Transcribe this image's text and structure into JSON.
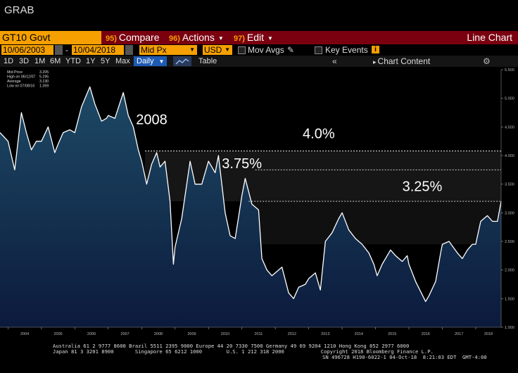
{
  "window": {
    "title": "GRAB"
  },
  "toolbar": {
    "ticker": "GT10 Govt",
    "compare": {
      "num": "95)",
      "label": "Compare"
    },
    "actions": {
      "num": "96)",
      "label": "Actions"
    },
    "edit": {
      "num": "97)",
      "label": "Edit"
    },
    "chart_type": "Line Chart"
  },
  "settings": {
    "start_date": "10/06/2003",
    "end_date": "10/04/2018",
    "field": "Mid Px",
    "currency": "USD",
    "mov_avgs": "Mov Avgs",
    "key_events": "Key Events",
    "info_badge": "i"
  },
  "periods": [
    "1D",
    "3D",
    "1M",
    "6M",
    "YTD",
    "1Y",
    "5Y",
    "Max"
  ],
  "frequency": "Daily",
  "table_label": "Table",
  "chart_content_label": "Chart Content",
  "legend": {
    "mid": "Mid Price",
    "mid_val": "3.205",
    "high": "High on 06/12/07",
    "high_val": "5.295",
    "avg": "Average",
    "avg_val": "3.130",
    "low": "Low on 07/08/16",
    "low_val": "1.359"
  },
  "colors": {
    "orange": "#f5a000",
    "red_bar": "#7a0010",
    "fill_top": "#1d4a66",
    "fill_bottom": "#0c1a3c",
    "line": "#ffffff"
  },
  "footer": {
    "line1": "Australia 61 2 9777 8600 Brazil 5511 2395 9000 Europe 44 20 7330 7500 Germany 49 69 9204 1210 Hong Kong 852 2977 6000",
    "line2": "Japan 81 3 3201 8900       Singapore 65 6212 1000        U.S. 1 212 318 2000            Copyright 2018 Bloomberg Finance L.P.",
    "line3": "SN 496728 H190-6022-1 04-Oct-18  8:21:03 EDT  GMT-4:00"
  },
  "chart_data": {
    "type": "line",
    "series": [
      {
        "name": "Mid Price",
        "x": [
          2003.76,
          2004.0,
          2004.2,
          2004.4,
          2004.55,
          2004.7,
          2004.85,
          2005.0,
          2005.2,
          2005.4,
          2005.5,
          2005.65,
          2005.85,
          2006.0,
          2006.2,
          2006.45,
          2006.6,
          2006.8,
          2006.95,
          2007.0,
          2007.2,
          2007.45,
          2007.6,
          2007.75,
          2007.9,
          2008.0,
          2008.15,
          2008.3,
          2008.45,
          2008.55,
          2008.7,
          2008.85,
          2008.95,
          2009.0,
          2009.2,
          2009.45,
          2009.6,
          2009.8,
          2009.95,
          2010.0,
          2010.2,
          2010.3,
          2010.5,
          2010.65,
          2010.8,
          2011.0,
          2011.1,
          2011.3,
          2011.5,
          2011.6,
          2011.75,
          2011.9,
          2012.0,
          2012.2,
          2012.4,
          2012.55,
          2012.7,
          2012.9,
          2013.0,
          2013.2,
          2013.35,
          2013.5,
          2013.7,
          2013.9,
          2014.0,
          2014.2,
          2014.4,
          2014.6,
          2014.8,
          2014.95,
          2015.05,
          2015.2,
          2015.45,
          2015.6,
          2015.8,
          2015.95,
          2016.0,
          2016.2,
          2016.5,
          2016.6,
          2016.8,
          2016.95,
          2017.0,
          2017.2,
          2017.45,
          2017.6,
          2017.75,
          2017.9,
          2018.0,
          2018.15,
          2018.35,
          2018.5,
          2018.65,
          2018.76
        ],
        "y": [
          4.4,
          4.25,
          3.75,
          4.75,
          4.4,
          4.1,
          4.25,
          4.25,
          4.5,
          4.05,
          4.2,
          4.4,
          4.45,
          4.4,
          4.85,
          5.2,
          4.9,
          4.6,
          4.65,
          4.7,
          4.65,
          5.1,
          4.7,
          4.5,
          4.1,
          3.9,
          3.5,
          3.85,
          4.05,
          3.8,
          3.9,
          3.2,
          2.1,
          2.4,
          2.9,
          3.9,
          3.5,
          3.5,
          3.8,
          3.9,
          3.7,
          4.0,
          3.0,
          2.6,
          2.55,
          3.3,
          3.6,
          3.15,
          3.05,
          2.2,
          2.0,
          1.9,
          1.95,
          2.05,
          1.6,
          1.5,
          1.7,
          1.75,
          1.85,
          1.95,
          1.65,
          2.5,
          2.65,
          2.9,
          3.0,
          2.7,
          2.55,
          2.45,
          2.3,
          2.1,
          1.9,
          2.1,
          2.35,
          2.25,
          2.15,
          2.25,
          2.1,
          1.8,
          1.45,
          1.55,
          1.8,
          2.3,
          2.45,
          2.5,
          2.3,
          2.2,
          2.35,
          2.45,
          2.45,
          2.85,
          2.95,
          2.85,
          2.85,
          3.2
        ]
      }
    ],
    "x_ticks": [
      "2004",
      "2005",
      "2006",
      "2007",
      "2008",
      "2009",
      "2010",
      "2011",
      "2012",
      "2013",
      "2014",
      "2015",
      "2016",
      "2017",
      "2018"
    ],
    "y_ticks": [
      "1.000",
      "1.500",
      "2.000",
      "2.500",
      "3.000",
      "3.500",
      "4.000",
      "4.500",
      "5.000",
      "5.500"
    ],
    "ylim": [
      1.0,
      5.5
    ],
    "xlim": [
      2003.76,
      2018.76
    ],
    "annotations": [
      {
        "text": "2008",
        "x": 2008.3,
        "y": 4.55
      },
      {
        "text": "4.0%",
        "x": 2013.3,
        "y": 4.3
      },
      {
        "text": "3.75%",
        "x": 2011.0,
        "y": 3.78
      },
      {
        "text": "3.25%",
        "x": 2016.4,
        "y": 3.38
      }
    ],
    "reference_lines": [
      {
        "value": 4.08,
        "from": 2008.1
      },
      {
        "value": 3.75,
        "from": 2011.4
      },
      {
        "value": 3.2,
        "from": 2011.2
      }
    ],
    "bands": [
      {
        "from": 2008.1,
        "to": 2018.76,
        "lower": 3.2,
        "upper": 4.08
      },
      {
        "from": 2011.2,
        "to": 2018.76,
        "lower": 2.45,
        "upper": 3.2
      }
    ],
    "grid": false,
    "legend_position": "top-left"
  }
}
